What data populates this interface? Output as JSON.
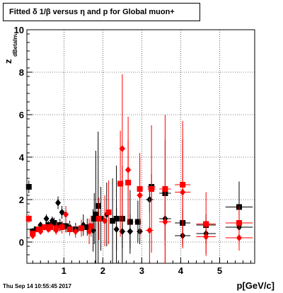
{
  "header": {
    "title": "Fitted δ 1/β versus η and p for Global muon+"
  },
  "footer": {
    "timestamp": "Thu Sep 14 10:55:45 2017"
  },
  "chart_data": {
    "type": "scatter",
    "title": "Fitted δ 1/β versus η and p for Global muon+",
    "xlabel": "p[GeV/c]",
    "ylabel": "z",
    "ylabel_subscript": "dBetaInv",
    "xlim": [
      0.05,
      5.9
    ],
    "ylim": [
      -1,
      10
    ],
    "x_ticks": [
      1,
      2,
      3,
      4,
      5
    ],
    "y_ticks": [
      0,
      2,
      4,
      6,
      8,
      10
    ],
    "grid": true,
    "series": [
      {
        "marker": "square",
        "color": "#000000",
        "points": [
          {
            "x": 0.1,
            "y": 2.6,
            "xerr": 0.05,
            "yerr": 0.3
          },
          {
            "x": 0.2,
            "y": 0.5,
            "xerr": 0.05,
            "yerr": 0.1
          },
          {
            "x": 0.3,
            "y": 0.6,
            "xerr": 0.05,
            "yerr": 0.1
          },
          {
            "x": 0.45,
            "y": 0.7,
            "xerr": 0.05,
            "yerr": 0.15
          },
          {
            "x": 0.6,
            "y": 0.8,
            "xerr": 0.05,
            "yerr": 0.2
          },
          {
            "x": 0.75,
            "y": 0.9,
            "xerr": 0.05,
            "yerr": 0.25
          },
          {
            "x": 0.9,
            "y": 0.8,
            "xerr": 0.05,
            "yerr": 0.3
          },
          {
            "x": 1.05,
            "y": 0.75,
            "xerr": 0.05,
            "yerr": 0.3
          },
          {
            "x": 1.3,
            "y": 0.6,
            "xerr": 0.05,
            "yerr": 0.3
          },
          {
            "x": 1.6,
            "y": 0.7,
            "xerr": 0.05,
            "yerr": 0.4
          },
          {
            "x": 1.78,
            "y": 1.1,
            "xerr": 0.05,
            "yerr": 1.2
          },
          {
            "x": 1.82,
            "y": 1.3,
            "xerr": 0.05,
            "yerr": 3.0
          },
          {
            "x": 1.88,
            "y": 1.7,
            "xerr": 0.05,
            "yerr": 3.5
          },
          {
            "x": 1.95,
            "y": 1.1,
            "xerr": 0.05,
            "yerr": 1.5
          },
          {
            "x": 2.25,
            "y": 1.0,
            "xerr": 0.05,
            "yerr": 2.0
          },
          {
            "x": 2.35,
            "y": 1.1,
            "xerr": 0.05,
            "yerr": 2.5
          },
          {
            "x": 2.5,
            "y": 1.1,
            "xerr": 0.08,
            "yerr": 2.5
          },
          {
            "x": 2.7,
            "y": 0.95,
            "xerr": 0.08,
            "yerr": 1.5
          },
          {
            "x": 2.9,
            "y": 0.95,
            "xerr": 0.08,
            "yerr": 1.0
          },
          {
            "x": 3.25,
            "y": 2.6,
            "xerr": 0.1,
            "yerr": 0.6
          },
          {
            "x": 3.6,
            "y": 2.3,
            "xerr": 0.15,
            "yerr": 2.5
          },
          {
            "x": 4.05,
            "y": 0.9,
            "xerr": 0.2,
            "yerr": 0.6
          },
          {
            "x": 4.65,
            "y": 0.8,
            "xerr": 0.25,
            "yerr": 0.5
          },
          {
            "x": 5.5,
            "y": 1.65,
            "xerr": 0.35,
            "yerr": 1.2
          }
        ]
      },
      {
        "marker": "diamond",
        "color": "#000000",
        "points": [
          {
            "x": 0.2,
            "y": 0.5,
            "xerr": 0.05,
            "yerr": 0.1
          },
          {
            "x": 0.4,
            "y": 0.8,
            "xerr": 0.05,
            "yerr": 0.15
          },
          {
            "x": 0.55,
            "y": 1.1,
            "xerr": 0.05,
            "yerr": 0.2
          },
          {
            "x": 0.7,
            "y": 1.0,
            "xerr": 0.05,
            "yerr": 0.2
          },
          {
            "x": 0.85,
            "y": 1.85,
            "xerr": 0.05,
            "yerr": 0.3
          },
          {
            "x": 0.95,
            "y": 1.4,
            "xerr": 0.05,
            "yerr": 0.3
          },
          {
            "x": 1.15,
            "y": 0.7,
            "xerr": 0.05,
            "yerr": 0.3
          },
          {
            "x": 1.5,
            "y": 0.8,
            "xerr": 0.05,
            "yerr": 0.5
          },
          {
            "x": 1.75,
            "y": 0.55,
            "xerr": 0.05,
            "yerr": 1.0
          },
          {
            "x": 2.1,
            "y": 1.3,
            "xerr": 0.05,
            "yerr": 1.5
          },
          {
            "x": 2.35,
            "y": 0.6,
            "xerr": 0.05,
            "yerr": 1.0
          },
          {
            "x": 2.5,
            "y": 0.5,
            "xerr": 0.08,
            "yerr": 0.8
          },
          {
            "x": 2.7,
            "y": 0.5,
            "xerr": 0.08,
            "yerr": 0.8
          },
          {
            "x": 2.95,
            "y": 0.5,
            "xerr": 0.08,
            "yerr": 0.6
          },
          {
            "x": 3.2,
            "y": 2.0,
            "xerr": 0.1,
            "yerr": 0.6
          },
          {
            "x": 3.6,
            "y": 1.1,
            "xerr": 0.15,
            "yerr": 1.0
          },
          {
            "x": 4.05,
            "y": 0.3,
            "xerr": 0.2,
            "yerr": 0.5
          },
          {
            "x": 4.65,
            "y": 0.4,
            "xerr": 0.25,
            "yerr": 0.5
          },
          {
            "x": 5.5,
            "y": 0.7,
            "xerr": 0.35,
            "yerr": 0.8
          }
        ]
      },
      {
        "marker": "square",
        "color": "#ff0000",
        "points": [
          {
            "x": 0.1,
            "y": 1.1,
            "xerr": 0.05,
            "yerr": 0.2
          },
          {
            "x": 0.2,
            "y": 0.4,
            "xerr": 0.05,
            "yerr": 0.1
          },
          {
            "x": 0.35,
            "y": 0.6,
            "xerr": 0.05,
            "yerr": 0.1
          },
          {
            "x": 0.5,
            "y": 0.7,
            "xerr": 0.05,
            "yerr": 0.15
          },
          {
            "x": 0.65,
            "y": 0.7,
            "xerr": 0.05,
            "yerr": 0.2
          },
          {
            "x": 0.8,
            "y": 0.65,
            "xerr": 0.05,
            "yerr": 0.25
          },
          {
            "x": 0.95,
            "y": 0.7,
            "xerr": 0.05,
            "yerr": 0.3
          },
          {
            "x": 1.15,
            "y": 0.6,
            "xerr": 0.05,
            "yerr": 0.3
          },
          {
            "x": 1.45,
            "y": 0.65,
            "xerr": 0.05,
            "yerr": 0.4
          },
          {
            "x": 1.7,
            "y": 0.75,
            "xerr": 0.05,
            "yerr": 0.5
          },
          {
            "x": 1.9,
            "y": 1.1,
            "xerr": 0.05,
            "yerr": 1.0
          },
          {
            "x": 2.15,
            "y": 1.4,
            "xerr": 0.05,
            "yerr": 1.5
          },
          {
            "x": 2.45,
            "y": 2.75,
            "xerr": 0.08,
            "yerr": 2.5
          },
          {
            "x": 2.65,
            "y": 2.8,
            "xerr": 0.08,
            "yerr": 2.0
          },
          {
            "x": 2.95,
            "y": 2.5,
            "xerr": 0.08,
            "yerr": 1.5
          },
          {
            "x": 3.25,
            "y": 2.5,
            "xerr": 0.1,
            "yerr": 3.0
          },
          {
            "x": 3.6,
            "y": 2.5,
            "xerr": 0.15,
            "yerr": 3.5
          },
          {
            "x": 4.05,
            "y": 2.7,
            "xerr": 0.2,
            "yerr": 3.0
          },
          {
            "x": 4.65,
            "y": 0.85,
            "xerr": 0.25,
            "yerr": 1.5
          },
          {
            "x": 5.5,
            "y": 0.9,
            "xerr": 0.35,
            "yerr": 0.8
          }
        ]
      },
      {
        "marker": "diamond",
        "color": "#ff0000",
        "points": [
          {
            "x": 0.2,
            "y": 0.3,
            "xerr": 0.05,
            "yerr": 0.1
          },
          {
            "x": 0.4,
            "y": 0.5,
            "xerr": 0.05,
            "yerr": 0.1
          },
          {
            "x": 0.6,
            "y": 0.6,
            "xerr": 0.05,
            "yerr": 0.15
          },
          {
            "x": 0.8,
            "y": 0.55,
            "xerr": 0.05,
            "yerr": 0.2
          },
          {
            "x": 1.05,
            "y": 1.3,
            "xerr": 0.05,
            "yerr": 0.4
          },
          {
            "x": 1.3,
            "y": 0.5,
            "xerr": 0.05,
            "yerr": 0.3
          },
          {
            "x": 1.65,
            "y": 0.5,
            "xerr": 0.05,
            "yerr": 0.6
          },
          {
            "x": 2.05,
            "y": 1.0,
            "xerr": 0.05,
            "yerr": 1.2
          },
          {
            "x": 2.5,
            "y": 4.4,
            "xerr": 0.08,
            "yerr": 3.5
          },
          {
            "x": 2.65,
            "y": 3.4,
            "xerr": 0.08,
            "yerr": 2.5
          },
          {
            "x": 2.95,
            "y": 2.2,
            "xerr": 0.08,
            "yerr": 2.0
          },
          {
            "x": 3.2,
            "y": 0.55,
            "xerr": 0.1,
            "yerr": 1.5
          },
          {
            "x": 3.6,
            "y": 0.95,
            "xerr": 0.15,
            "yerr": 2.0
          },
          {
            "x": 4.05,
            "y": 2.35,
            "xerr": 0.2,
            "yerr": 2.5
          },
          {
            "x": 4.65,
            "y": 0.25,
            "xerr": 0.25,
            "yerr": 0.8
          },
          {
            "x": 5.5,
            "y": 0.2,
            "xerr": 0.35,
            "yerr": 0.6
          }
        ]
      }
    ]
  }
}
